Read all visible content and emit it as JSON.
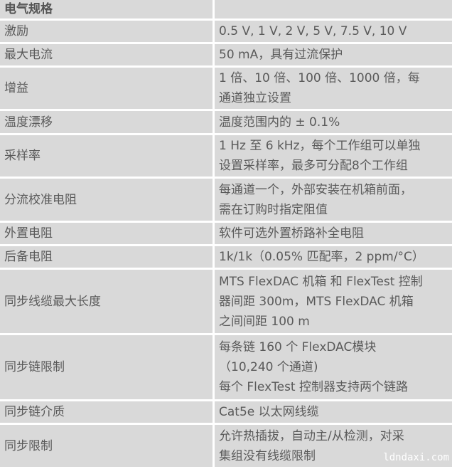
{
  "header": {
    "title": "电气规格",
    "value": ""
  },
  "rows": [
    {
      "label": "激励",
      "lines": [
        "0.5 V, 1 V, 2 V, 5 V, 7.5 V, 10 V"
      ],
      "h": 33
    },
    {
      "label": "最大电流",
      "lines": [
        "50 mA，具有过流保护"
      ],
      "h": 32
    },
    {
      "label": "增益",
      "lines": [
        "1 倍、10 倍、100 倍、1000 倍，每",
        "通道独立设置"
      ],
      "h": 61
    },
    {
      "label": "温度漂移",
      "lines": [
        "温度范围内的 ± 0.1%"
      ],
      "h": 34
    },
    {
      "label": "采样率",
      "lines": [
        "1 Hz 至 6 kHz，每个工作组可以单独",
        "设置采样率，最多可分配8个工作组"
      ],
      "h": 61
    },
    {
      "label": "分流校准电阻",
      "lines": [
        "每通道一个，外部安装在机箱前面，",
        "需在订购时指定阻值"
      ],
      "h": 62
    },
    {
      "label": "外置电阻",
      "lines": [
        "软件可选外置桥路补全电阻"
      ],
      "h": 33
    },
    {
      "label": "后备电阻",
      "lines": [
        "1k/1k（0.05% 匹配率，2 ppm/°C）"
      ],
      "h": 30
    },
    {
      "label": "同步线缆最大长度",
      "lines": [
        "MTS FlexDAC 机箱 和 FlexTest 控制",
        "器间距 300m，MTS FlexDAC 机箱",
        "之间间距 100 m"
      ],
      "h": 92
    },
    {
      "label": "同步链限制",
      "lines": [
        "每条链 160 个 FlexDAC模块",
        "（10,240 个通道)",
        "每个 FlexTest 控制器支持两个链路"
      ],
      "h": 93
    },
    {
      "label": "同步链介质",
      "lines": [
        "Cat5e 以太网线缆"
      ],
      "h": 32
    },
    {
      "label": "同步限制",
      "lines": [
        "允许热插拔，自动主/从检测，对采",
        "集组没有线缆限制"
      ],
      "h": 62
    }
  ],
  "watermark": "ldndaxi.com"
}
